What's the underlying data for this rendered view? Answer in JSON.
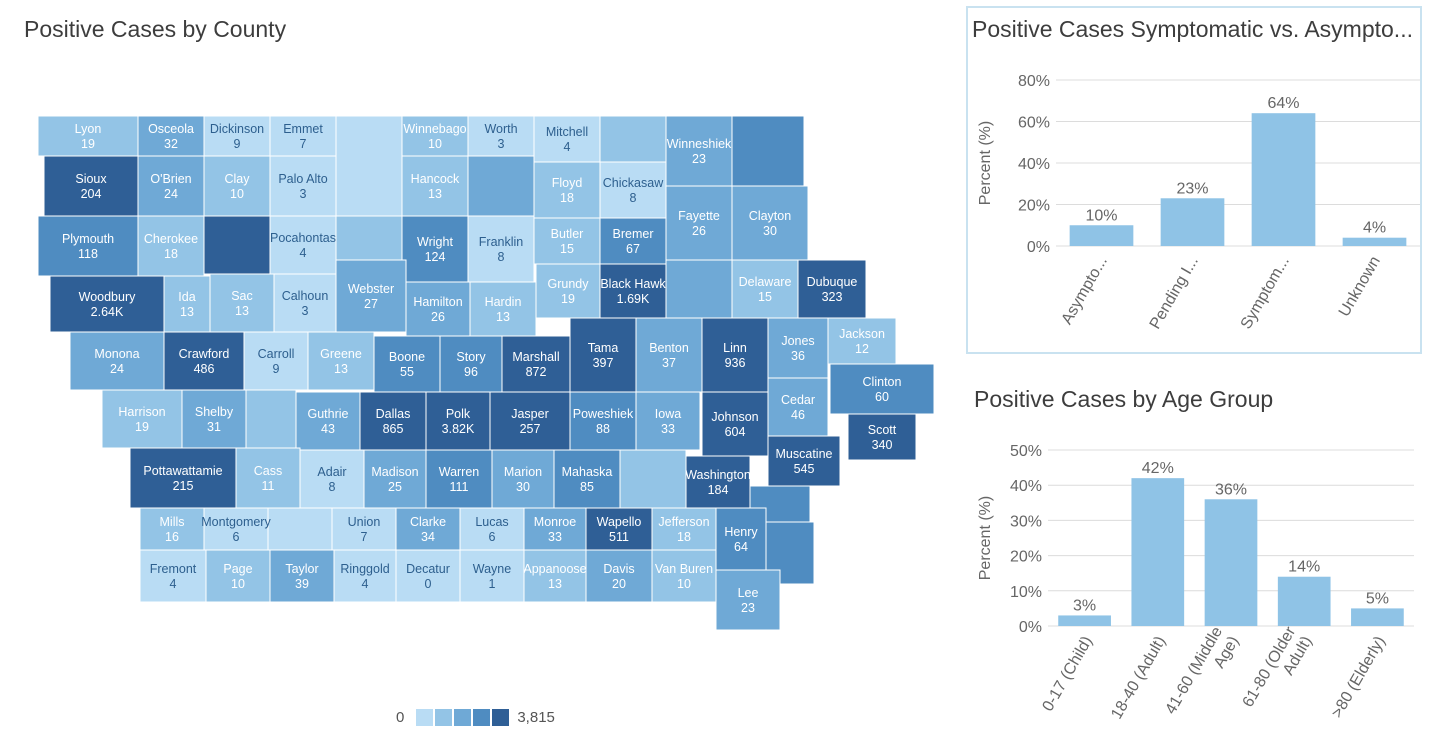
{
  "map": {
    "title": "Positive Cases by County",
    "legend": {
      "min": "0",
      "max": "3,815",
      "colors": [
        "#b9dcf4",
        "#93c4e6",
        "#6fa9d6",
        "#4f8cc1",
        "#2f5f96"
      ]
    },
    "counties": [
      {
        "name": "Lyon",
        "value": "19"
      },
      {
        "name": "Osceola",
        "value": "32"
      },
      {
        "name": "Dickinson",
        "value": "9"
      },
      {
        "name": "Emmet",
        "value": "7"
      },
      {
        "name": "Winnebago",
        "value": "10"
      },
      {
        "name": "Worth",
        "value": "3"
      },
      {
        "name": "Mitchell",
        "value": "4"
      },
      {
        "name": "Winneshiek",
        "value": "23"
      },
      {
        "name": "Sioux",
        "value": "204"
      },
      {
        "name": "O'Brien",
        "value": "24"
      },
      {
        "name": "Clay",
        "value": "10"
      },
      {
        "name": "Palo Alto",
        "value": "3"
      },
      {
        "name": "Hancock",
        "value": "13"
      },
      {
        "name": "Floyd",
        "value": "18"
      },
      {
        "name": "Chickasaw",
        "value": "8"
      },
      {
        "name": "Fayette",
        "value": "26"
      },
      {
        "name": "Clayton",
        "value": "30"
      },
      {
        "name": "Plymouth",
        "value": "118"
      },
      {
        "name": "Cherokee",
        "value": "18"
      },
      {
        "name": "Pocahontas",
        "value": "4"
      },
      {
        "name": "Wright",
        "value": "124"
      },
      {
        "name": "Franklin",
        "value": "8"
      },
      {
        "name": "Butler",
        "value": "15"
      },
      {
        "name": "Bremer",
        "value": "67"
      },
      {
        "name": "Black Hawk",
        "value": "1.69K"
      },
      {
        "name": "Delaware",
        "value": "15"
      },
      {
        "name": "Dubuque",
        "value": "323"
      },
      {
        "name": "Woodbury",
        "value": "2.64K"
      },
      {
        "name": "Ida",
        "value": "13"
      },
      {
        "name": "Sac",
        "value": "13"
      },
      {
        "name": "Calhoun",
        "value": "3"
      },
      {
        "name": "Webster",
        "value": "27"
      },
      {
        "name": "Hamilton",
        "value": "26"
      },
      {
        "name": "Hardin",
        "value": "13"
      },
      {
        "name": "Grundy",
        "value": "19"
      },
      {
        "name": "Jackson",
        "value": "12"
      },
      {
        "name": "Monona",
        "value": "24"
      },
      {
        "name": "Crawford",
        "value": "486"
      },
      {
        "name": "Carroll",
        "value": "9"
      },
      {
        "name": "Greene",
        "value": "13"
      },
      {
        "name": "Boone",
        "value": "55"
      },
      {
        "name": "Story",
        "value": "96"
      },
      {
        "name": "Marshall",
        "value": "872"
      },
      {
        "name": "Tama",
        "value": "397"
      },
      {
        "name": "Benton",
        "value": "37"
      },
      {
        "name": "Linn",
        "value": "936"
      },
      {
        "name": "Jones",
        "value": "36"
      },
      {
        "name": "Clinton",
        "value": "60"
      },
      {
        "name": "Cedar",
        "value": "46"
      },
      {
        "name": "Harrison",
        "value": "19"
      },
      {
        "name": "Shelby",
        "value": "31"
      },
      {
        "name": "Guthrie",
        "value": "43"
      },
      {
        "name": "Dallas",
        "value": "865"
      },
      {
        "name": "Polk",
        "value": "3.82K"
      },
      {
        "name": "Jasper",
        "value": "257"
      },
      {
        "name": "Poweshiek",
        "value": "88"
      },
      {
        "name": "Iowa",
        "value": "33"
      },
      {
        "name": "Johnson",
        "value": "604"
      },
      {
        "name": "Scott",
        "value": "340"
      },
      {
        "name": "Muscatine",
        "value": "545"
      },
      {
        "name": "Pottawattamie",
        "value": "215"
      },
      {
        "name": "Cass",
        "value": "11"
      },
      {
        "name": "Adair",
        "value": "8"
      },
      {
        "name": "Madison",
        "value": "25"
      },
      {
        "name": "Warren",
        "value": "111"
      },
      {
        "name": "Marion",
        "value": "30"
      },
      {
        "name": "Mahaska",
        "value": "85"
      },
      {
        "name": "Washington",
        "value": "184"
      },
      {
        "name": "Mills",
        "value": "16"
      },
      {
        "name": "Montgomery",
        "value": "6"
      },
      {
        "name": "Union",
        "value": "7"
      },
      {
        "name": "Clarke",
        "value": "34"
      },
      {
        "name": "Lucas",
        "value": "6"
      },
      {
        "name": "Monroe",
        "value": "33"
      },
      {
        "name": "Wapello",
        "value": "511"
      },
      {
        "name": "Jefferson",
        "value": "18"
      },
      {
        "name": "Henry",
        "value": "64"
      },
      {
        "name": "Fremont",
        "value": "4"
      },
      {
        "name": "Page",
        "value": "10"
      },
      {
        "name": "Taylor",
        "value": "39"
      },
      {
        "name": "Ringgold",
        "value": "4"
      },
      {
        "name": "Decatur",
        "value": "0"
      },
      {
        "name": "Wayne",
        "value": "1"
      },
      {
        "name": "Appanoose",
        "value": "13"
      },
      {
        "name": "Davis",
        "value": "20"
      },
      {
        "name": "Van Buren",
        "value": "10"
      },
      {
        "name": "Lee",
        "value": "23"
      }
    ]
  },
  "chart_data": [
    {
      "type": "bar",
      "title": "Positive Cases Symptomatic vs. Asympto...",
      "ylabel": "Percent (%)",
      "xlabel": "",
      "categories": [
        "Asympto...",
        "Pending I...",
        "Symptom...",
        "Unknown"
      ],
      "values": [
        10,
        23,
        64,
        4
      ],
      "data_labels": [
        "10%",
        "23%",
        "64%",
        "4%"
      ],
      "ylim": [
        0,
        80
      ],
      "yticks": [
        "0%",
        "20%",
        "40%",
        "60%",
        "80%"
      ],
      "grid": true,
      "color": "#8fc3e6"
    },
    {
      "type": "bar",
      "title": "Positive Cases by Age Group",
      "ylabel": "Percent (%)",
      "xlabel": "",
      "categories": [
        "0-17 (Child)",
        "18-40 (Adult)",
        "41-60 (Middle Age)",
        "61-80 (Older Adult)",
        ">80 (Elderly)"
      ],
      "values": [
        3,
        42,
        36,
        14,
        5
      ],
      "data_labels": [
        "3%",
        "42%",
        "36%",
        "14%",
        "5%"
      ],
      "ylim": [
        0,
        50
      ],
      "yticks": [
        "0%",
        "10%",
        "20%",
        "30%",
        "40%",
        "50%"
      ],
      "grid": true,
      "color": "#8fc3e6"
    }
  ]
}
